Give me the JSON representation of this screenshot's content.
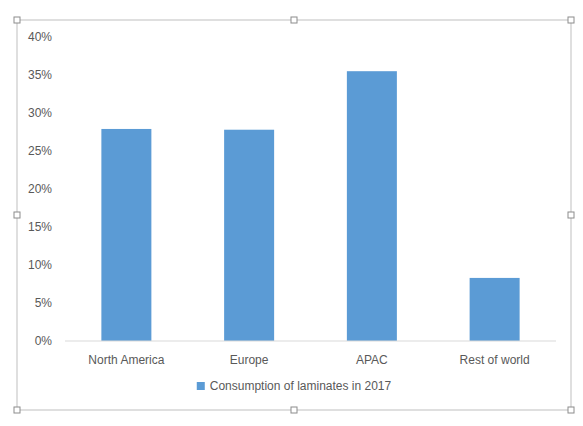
{
  "chart_data": {
    "type": "bar",
    "categories": [
      "North America",
      "Europe",
      "APAC",
      "Rest of world"
    ],
    "series": [
      {
        "name": "Consumption of laminates in 2017",
        "color": "#5b9bd5",
        "values": [
          27.9,
          27.8,
          35.5,
          8.3
        ]
      }
    ],
    "ylim": [
      0,
      40
    ],
    "yticks": [
      {
        "value": 0,
        "label": "0%"
      },
      {
        "value": 5,
        "label": "5%"
      },
      {
        "value": 10,
        "label": "10%"
      },
      {
        "value": 15,
        "label": "15%"
      },
      {
        "value": 20,
        "label": "20%"
      },
      {
        "value": 25,
        "label": "25%"
      },
      {
        "value": 30,
        "label": "30%"
      },
      {
        "value": 35,
        "label": "35%"
      },
      {
        "value": 40,
        "label": "40%"
      }
    ],
    "grid": false,
    "legend": "bottom"
  }
}
